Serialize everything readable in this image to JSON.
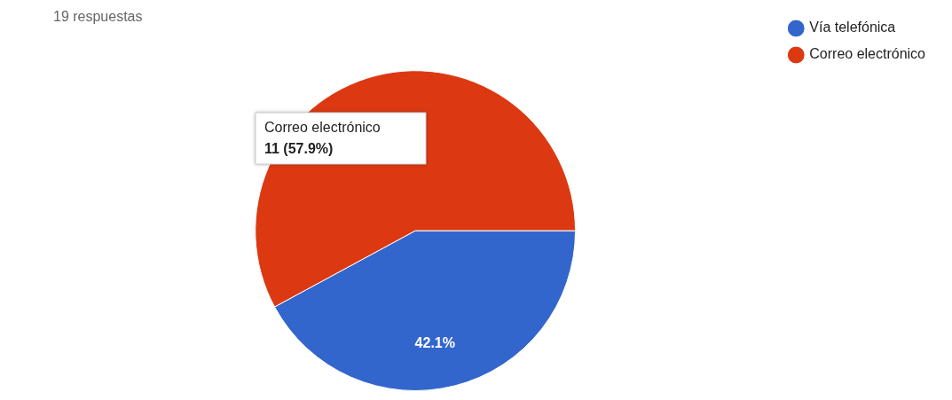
{
  "chart_data": {
    "type": "pie",
    "title": "19 respuestas",
    "categories": [
      "Vía telefónica",
      "Correo electrónico"
    ],
    "values": [
      42.1,
      57.9
    ],
    "colors": [
      "#3366cc",
      "#dc3912"
    ],
    "value_labels": [
      "42.1%",
      null
    ],
    "annotations": [
      "Correo electrónico",
      "11 (57.9%)"
    ],
    "legend": "top right"
  }
}
